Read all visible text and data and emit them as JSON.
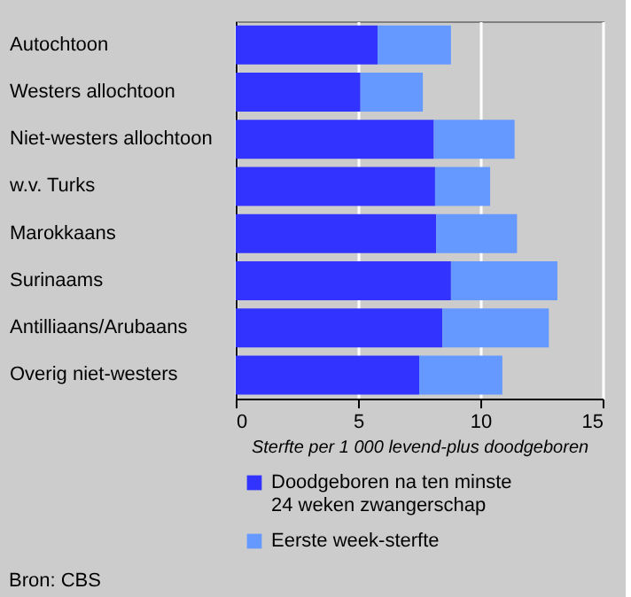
{
  "chart_data": {
    "type": "bar",
    "orientation": "horizontal",
    "stacked": true,
    "categories": [
      "Autochtoon",
      "Westers allochtoon",
      "Niet-westers allochtoon",
      "w.v. Turks",
      "Marokkaans",
      "Surinaams",
      "Antilliaans/Arubaans",
      "Overig niet-westers"
    ],
    "series": [
      {
        "name": "Doodgeboren na ten minste\n24 weken zwangerschap",
        "color": "#3333ff",
        "values": [
          5.8,
          5.1,
          8.1,
          8.15,
          8.2,
          8.8,
          8.45,
          7.5
        ]
      },
      {
        "name": "Eerste week-sterfte",
        "color": "#6699ff",
        "values": [
          3.0,
          2.55,
          3.3,
          2.25,
          3.3,
          4.35,
          4.35,
          3.4
        ]
      }
    ],
    "xlim": [
      0,
      15
    ],
    "xticks": [
      0,
      5,
      10,
      15
    ],
    "grid": "x",
    "xlabel": "Sterfte per 1 000 levend-plus doodgeboren",
    "legend": "bottom",
    "annotations": [
      "Bron: CBS"
    ]
  }
}
